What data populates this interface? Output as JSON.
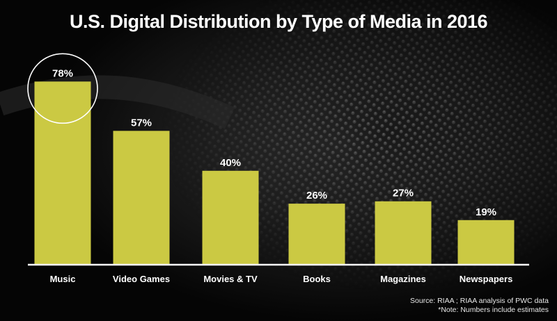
{
  "title": "U.S. Digital Distribution by Type of Media in 2016",
  "source": {
    "line1": "Source: RIAA ; RIAA analysis of PWC data",
    "line2": "*Note: Numbers include estimates"
  },
  "highlight_category": "Music",
  "colors": {
    "bar": "#cbc943",
    "axis": "#ffffff",
    "label": "#ffffff",
    "highlight_ring": "#ffffff"
  },
  "chart_data": {
    "type": "bar",
    "title": "U.S. Digital Distribution by Type of Media in 2016",
    "categories": [
      "Music",
      "Video Games",
      "Movies & TV",
      "Books",
      "Magazines",
      "Newspapers"
    ],
    "values": [
      78,
      57,
      40,
      26,
      27,
      19
    ],
    "value_labels": [
      "78%",
      "57%",
      "40%",
      "26%",
      "27%",
      "19%"
    ],
    "unit": "%",
    "xlabel": "",
    "ylabel": "",
    "ylim": [
      0,
      100
    ],
    "grid": false,
    "legend": "none"
  }
}
